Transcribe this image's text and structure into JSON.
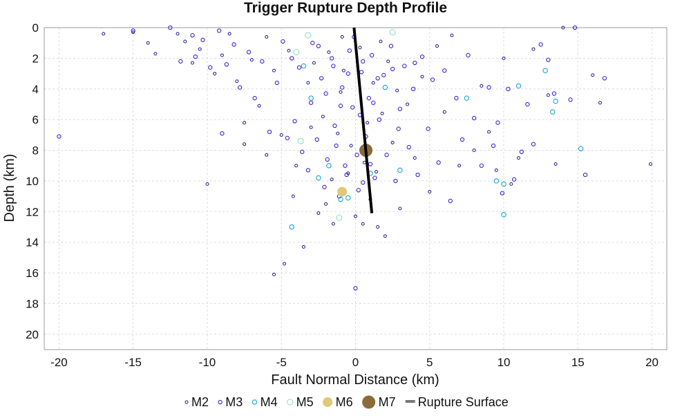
{
  "chart_data": {
    "type": "scatter",
    "title": "Trigger Rupture Depth Profile",
    "xlabel": "Fault Normal Distance (km)",
    "ylabel": "Depth (km)",
    "xlim": [
      -21,
      21
    ],
    "ylim": [
      0,
      21
    ],
    "y_inverted": true,
    "grid": true,
    "x_ticks": [
      "-20",
      "-15",
      "-10",
      "-5",
      "0",
      "5",
      "10",
      "15",
      "20"
    ],
    "y_ticks": [
      "0",
      "2",
      "4",
      "6",
      "8",
      "10",
      "12",
      "14",
      "16",
      "18",
      "20"
    ],
    "legend_position": "bottom-center",
    "colors": {
      "M2": "#1a1a8c",
      "M3": "#3a1fd1",
      "M4": "#1aa3d9",
      "M5": "#7fe0c0",
      "M6": "#e0c878",
      "M7": "#8b6b3a",
      "rupture": "#000000"
    },
    "series": [
      {
        "name": "M2",
        "marker": "open-circle-small",
        "points": [
          [
            -17,
            0.4
          ],
          [
            -15,
            0.3
          ],
          [
            -14,
            1.0
          ],
          [
            -13.5,
            1.7
          ],
          [
            -12,
            0.4
          ],
          [
            -11.5,
            0.9
          ],
          [
            -11,
            2.3
          ],
          [
            -10.5,
            1.4
          ],
          [
            -10,
            10.2
          ],
          [
            -9.5,
            3.0
          ],
          [
            -9,
            1.8
          ],
          [
            -8.5,
            0.4
          ],
          [
            -8,
            3.5
          ],
          [
            -7.5,
            6.2
          ],
          [
            -7.5,
            7.6
          ],
          [
            -7,
            2.1
          ],
          [
            -6.5,
            5.1
          ],
          [
            -6,
            0.6
          ],
          [
            -6,
            8.3
          ],
          [
            -5.5,
            16.1
          ],
          [
            -5.5,
            2.8
          ],
          [
            -5,
            7.0
          ],
          [
            -4.8,
            15.4
          ],
          [
            -4.5,
            1.5
          ],
          [
            -4.2,
            11.0
          ],
          [
            -4,
            9.0
          ],
          [
            -3.5,
            14.3
          ],
          [
            -3,
            6.5
          ],
          [
            -2.5,
            12.1
          ],
          [
            -2,
            11.5
          ],
          [
            -1.5,
            12.8
          ],
          [
            -1,
            4.2
          ],
          [
            -0.5,
            9.5
          ],
          [
            0,
            12.3
          ],
          [
            0.5,
            12.8
          ],
          [
            1,
            11.2
          ],
          [
            1.5,
            13.0
          ],
          [
            2,
            13.6
          ],
          [
            2.5,
            7.5
          ],
          [
            3,
            11.8
          ],
          [
            3.5,
            5.0
          ],
          [
            4,
            8.5
          ],
          [
            4.5,
            3.2
          ],
          [
            5,
            10.7
          ],
          [
            5.5,
            1.2
          ],
          [
            6,
            5.5
          ],
          [
            6.5,
            0.5
          ],
          [
            7,
            9.0
          ],
          [
            8,
            8.0
          ],
          [
            8.5,
            3.8
          ],
          [
            9,
            6.8
          ],
          [
            9.5,
            9.3
          ],
          [
            10,
            2.0
          ],
          [
            10.5,
            10.2
          ],
          [
            11,
            8.5
          ],
          [
            12,
            1.4
          ],
          [
            13,
            4.4
          ],
          [
            13.5,
            8.9
          ],
          [
            14,
            0.0
          ],
          [
            16,
            3.1
          ],
          [
            16.5,
            4.9
          ],
          [
            19.9,
            8.9
          ],
          [
            -2.8,
            2.3
          ],
          [
            -1.8,
            1.6
          ],
          [
            -0.8,
            2.8
          ],
          [
            0.3,
            1.3
          ],
          [
            1.2,
            3.6
          ],
          [
            2.2,
            2.2
          ],
          [
            -2.2,
            5.8
          ],
          [
            -1.2,
            6.9
          ],
          [
            0.8,
            6.2
          ],
          [
            1.8,
            5.6
          ],
          [
            -3.2,
            3.6
          ],
          [
            2.8,
            4.1
          ],
          [
            -0.3,
            7.7
          ],
          [
            0.6,
            8.8
          ],
          [
            -1.6,
            9.9
          ],
          [
            1.4,
            9.4
          ],
          [
            -0.9,
            0.6
          ],
          [
            1.7,
            0.9
          ]
        ]
      },
      {
        "name": "M3",
        "marker": "open-circle",
        "points": [
          [
            -20,
            7.1
          ],
          [
            -12.5,
            0.0
          ],
          [
            -11.8,
            2.2
          ],
          [
            -11,
            0.5
          ],
          [
            -10.8,
            1.9
          ],
          [
            -10.3,
            0.8
          ],
          [
            -9.8,
            2.6
          ],
          [
            -9.2,
            0.2
          ],
          [
            -9,
            6.9
          ],
          [
            -8.7,
            2.4
          ],
          [
            -8.2,
            1.1
          ],
          [
            -7.8,
            3.9
          ],
          [
            -7.2,
            1.6
          ],
          [
            -6.8,
            4.6
          ],
          [
            -6.3,
            2.2
          ],
          [
            -5.8,
            6.8
          ],
          [
            -5.3,
            3.6
          ],
          [
            -4.9,
            0.9
          ],
          [
            -4.6,
            7.2
          ],
          [
            -4.1,
            6.1
          ],
          [
            -3.8,
            2.6
          ],
          [
            -3.6,
            8.1
          ],
          [
            -3.2,
            9.3
          ],
          [
            -2.9,
            1.0
          ],
          [
            -2.6,
            7.3
          ],
          [
            -2.3,
            3.3
          ],
          [
            -2.1,
            10.4
          ],
          [
            -1.9,
            8.6
          ],
          [
            -1.6,
            2.0
          ],
          [
            -1.4,
            6.4
          ],
          [
            -1.1,
            11.0
          ],
          [
            -0.9,
            3.9
          ],
          [
            -0.7,
            9.0
          ],
          [
            -0.4,
            1.5
          ],
          [
            -0.2,
            5.2
          ],
          [
            0.0,
            17.0
          ],
          [
            0.2,
            10.6
          ],
          [
            0.4,
            2.9
          ],
          [
            0.7,
            7.1
          ],
          [
            0.9,
            4.6
          ],
          [
            1.1,
            1.8
          ],
          [
            1.3,
            9.8
          ],
          [
            1.6,
            6.0
          ],
          [
            1.9,
            3.1
          ],
          [
            2.1,
            8.3
          ],
          [
            2.4,
            1.2
          ],
          [
            2.7,
            10.0
          ],
          [
            3.0,
            5.3
          ],
          [
            3.3,
            2.5
          ],
          [
            3.6,
            7.8
          ],
          [
            3.9,
            4.0
          ],
          [
            4.2,
            9.6
          ],
          [
            4.5,
            1.9
          ],
          [
            4.9,
            6.6
          ],
          [
            5.2,
            3.4
          ],
          [
            5.6,
            8.8
          ],
          [
            6.0,
            2.8
          ],
          [
            6.4,
            11.3
          ],
          [
            6.8,
            4.6
          ],
          [
            7.2,
            7.3
          ],
          [
            7.6,
            1.8
          ],
          [
            8.0,
            5.9
          ],
          [
            8.5,
            9.0
          ],
          [
            9.0,
            3.9
          ],
          [
            9.3,
            7.7
          ],
          [
            9.6,
            6.2
          ],
          [
            9.9,
            10.8
          ],
          [
            10.3,
            4.0
          ],
          [
            10.7,
            9.9
          ],
          [
            11.2,
            8.1
          ],
          [
            11.6,
            5.0
          ],
          [
            12.0,
            7.6
          ],
          [
            12.5,
            1.1
          ],
          [
            13.0,
            2.1
          ],
          [
            13.4,
            4.3
          ],
          [
            14.5,
            4.7
          ],
          [
            14.8,
            0.0
          ],
          [
            15.5,
            9.6
          ],
          [
            16.8,
            3.3
          ],
          [
            -15,
            0.2
          ],
          [
            -2.5,
            1.2
          ],
          [
            -1.5,
            2.5
          ],
          [
            -0.5,
            3.0
          ],
          [
            0.5,
            2.2
          ],
          [
            1.5,
            3.3
          ],
          [
            2.5,
            2.7
          ],
          [
            -2.0,
            4.3
          ],
          [
            -1.0,
            5.1
          ],
          [
            0.3,
            5.7
          ],
          [
            1.2,
            4.9
          ],
          [
            -1.3,
            7.7
          ],
          [
            0.1,
            8.3
          ],
          [
            1.0,
            8.9
          ],
          [
            -0.6,
            9.6
          ],
          [
            0.5,
            10.1
          ],
          [
            -3.0,
            4.9
          ],
          [
            2.9,
            6.6
          ],
          [
            -4.3,
            2.0
          ],
          [
            4.0,
            2.3
          ],
          [
            -0.1,
            0.6
          ]
        ]
      },
      {
        "name": "M4",
        "marker": "open-circle-medium",
        "points": [
          [
            -4.3,
            13.0
          ],
          [
            -3.0,
            4.6
          ],
          [
            -2.5,
            9.8
          ],
          [
            -1.8,
            9.0
          ],
          [
            -1.0,
            11.2
          ],
          [
            -0.5,
            11.1
          ],
          [
            1.0,
            9.5
          ],
          [
            3.0,
            9.3
          ],
          [
            9.5,
            10.0
          ],
          [
            10.0,
            10.2
          ],
          [
            10.0,
            12.2
          ],
          [
            11.0,
            3.8
          ],
          [
            12.8,
            2.8
          ],
          [
            13.3,
            5.5
          ],
          [
            13.5,
            4.8
          ],
          [
            15.2,
            7.9
          ],
          [
            7.5,
            4.6
          ],
          [
            -3.5,
            2.5
          ],
          [
            2.0,
            3.9
          ]
        ]
      },
      {
        "name": "M5",
        "marker": "open-circle-large",
        "points": [
          [
            -3.7,
            7.4
          ],
          [
            -3.2,
            0.5
          ],
          [
            -1.1,
            12.4
          ],
          [
            -4.0,
            1.6
          ],
          [
            2.5,
            0.3
          ]
        ]
      },
      {
        "name": "M6",
        "marker": "filled-circle",
        "points": [
          [
            -0.9,
            10.7
          ]
        ]
      },
      {
        "name": "M7",
        "marker": "filled-circle-large",
        "points": [
          [
            0.7,
            8.0
          ]
        ]
      },
      {
        "name": "Rupture Surface",
        "marker": "line",
        "points": [
          [
            -0.1,
            0.0
          ],
          [
            1.1,
            12.1
          ]
        ]
      }
    ]
  }
}
